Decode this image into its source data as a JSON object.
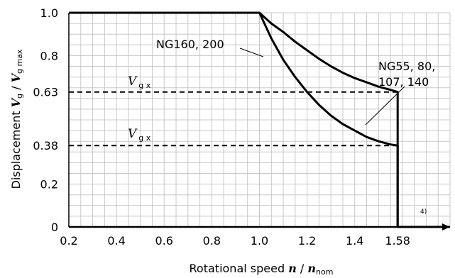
{
  "chart_data": {
    "type": "line",
    "xlim": [
      0.2,
      1.8
    ],
    "ylim": [
      0,
      1.0
    ],
    "x_ticks": [
      0.2,
      0.4,
      0.6,
      0.8,
      1.0,
      1.2,
      1.4,
      1.58
    ],
    "x_tick_labels": [
      "0.2",
      "0.4",
      "0.6",
      "0.8",
      "1.0",
      "1.2",
      "1.4",
      "1.58"
    ],
    "y_ticks": [
      0,
      0.2,
      0.38,
      0.63,
      0.8,
      1.0
    ],
    "y_tick_labels": [
      "0",
      "0.2",
      "0.38",
      "0.63",
      "0.8",
      "1.0"
    ],
    "grid": true,
    "xlabel": {
      "prefix": "Rotational speed ",
      "var": "n",
      "sep": " / ",
      "var2": "n",
      "sub2": "nom"
    },
    "ylabel": {
      "prefix": "Displacement ",
      "var": "V",
      "sub": "g",
      "sep": " / ",
      "var2": "V",
      "sub2": "g max"
    },
    "series": [
      {
        "name": "NG160, 200",
        "x": [
          0.2,
          1.0,
          1.05,
          1.1,
          1.15,
          1.2,
          1.25,
          1.3,
          1.35,
          1.4,
          1.45,
          1.5,
          1.55,
          1.58,
          1.58,
          1.8
        ],
        "y": [
          1.0,
          1.0,
          0.88,
          0.78,
          0.7,
          0.63,
          0.57,
          0.52,
          0.48,
          0.45,
          0.42,
          0.4,
          0.385,
          0.38,
          0.0,
          0.0
        ]
      },
      {
        "name": "NG55, 80, 107, 140",
        "x": [
          0.2,
          1.0,
          1.05,
          1.1,
          1.15,
          1.2,
          1.25,
          1.3,
          1.35,
          1.4,
          1.45,
          1.5,
          1.55,
          1.58,
          1.58,
          1.8
        ],
        "y": [
          1.0,
          1.0,
          0.95,
          0.91,
          0.865,
          0.825,
          0.785,
          0.75,
          0.72,
          0.695,
          0.675,
          0.655,
          0.64,
          0.63,
          0.0,
          0.0
        ]
      }
    ],
    "reference_lines": [
      {
        "y": 0.63,
        "label": "V",
        "sub": "g x",
        "style": "dashed"
      },
      {
        "y": 0.38,
        "label": "V",
        "sub": "g x",
        "style": "dashed"
      }
    ],
    "annotations": {
      "ng160": "NG160, 200",
      "ng55_line1": "NG55, 80,",
      "ng55_line2": "107, 140",
      "footnote": "4)"
    }
  }
}
